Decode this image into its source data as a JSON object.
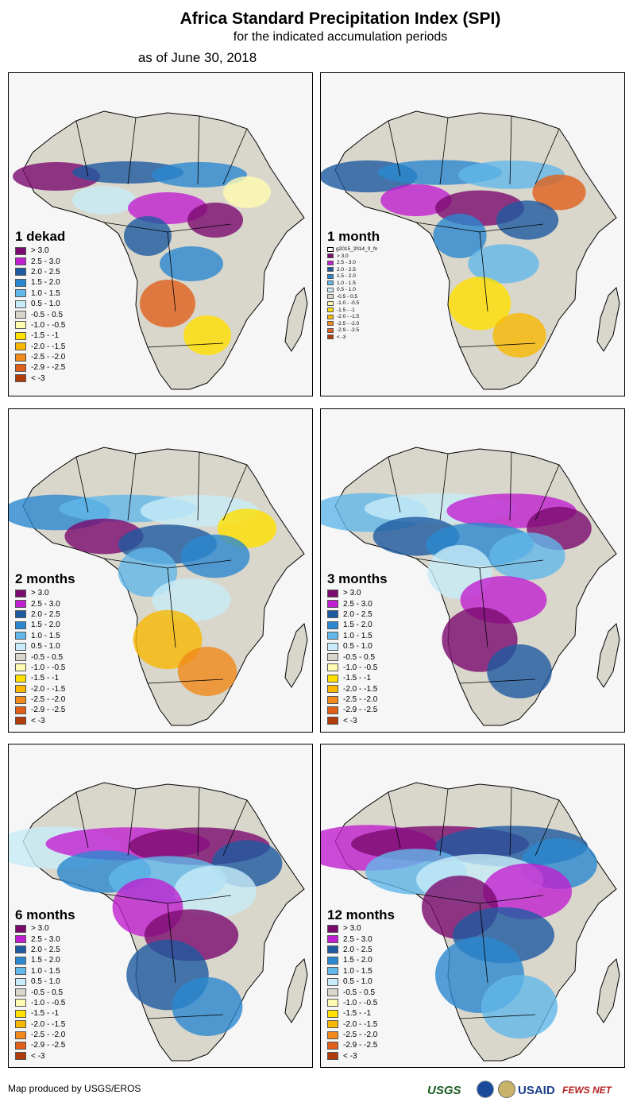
{
  "header": {
    "title": "Africa Standard Precipitation Index (SPI)",
    "subtitle": "for the indicated accumulation periods",
    "date": "as of June 30, 2018"
  },
  "legend_colors": [
    "#7b0a6e",
    "#c020d0",
    "#1e5aa0",
    "#2b88d0",
    "#62b8ea",
    "#c8ecf8",
    "#d9d6cc",
    "#fffbb0",
    "#ffe000",
    "#f8b800",
    "#f08a1a",
    "#e0601a",
    "#b03a08"
  ],
  "legend_labels": [
    "> 3.0",
    "2.5 - 3.0",
    "2.0 - 2.5",
    "1.5 - 2.0",
    "1.0 - 1.5",
    "0.5 - 1.0",
    "-0.5 - 0.5",
    "-1.0 - -0.5",
    "-1.5 - -1",
    "-2.0 - -1.5",
    "-2.5 - -2.0",
    "-2.9 - -2.5",
    "< -3"
  ],
  "legend_labels_1month": [
    "> 3.0",
    "2.5 - 3.0",
    "2.0 - 2.5",
    "1.5 - 2.0",
    "1.0 - 1.5",
    "0.5 - 1.0",
    "-0.5 - 0.5",
    "-1.0 - -0.5",
    "-1.5 - -1",
    "-2.0 - -1.5",
    "-2.5 - -2.0",
    "-2.9 - -2.5",
    "< -3"
  ],
  "legend_header_1month": "g2015_2014_0_fn",
  "panels": [
    {
      "label": "1 dekad"
    },
    {
      "label": "1 month"
    },
    {
      "label": "2 months"
    },
    {
      "label": "3 months"
    },
    {
      "label": "6 months"
    },
    {
      "label": "12 months"
    }
  ],
  "footer": "Map produced by USGS/EROS",
  "logos": {
    "usgs": "USGS",
    "usaid": "USAID",
    "fews": "FEWS NET"
  }
}
